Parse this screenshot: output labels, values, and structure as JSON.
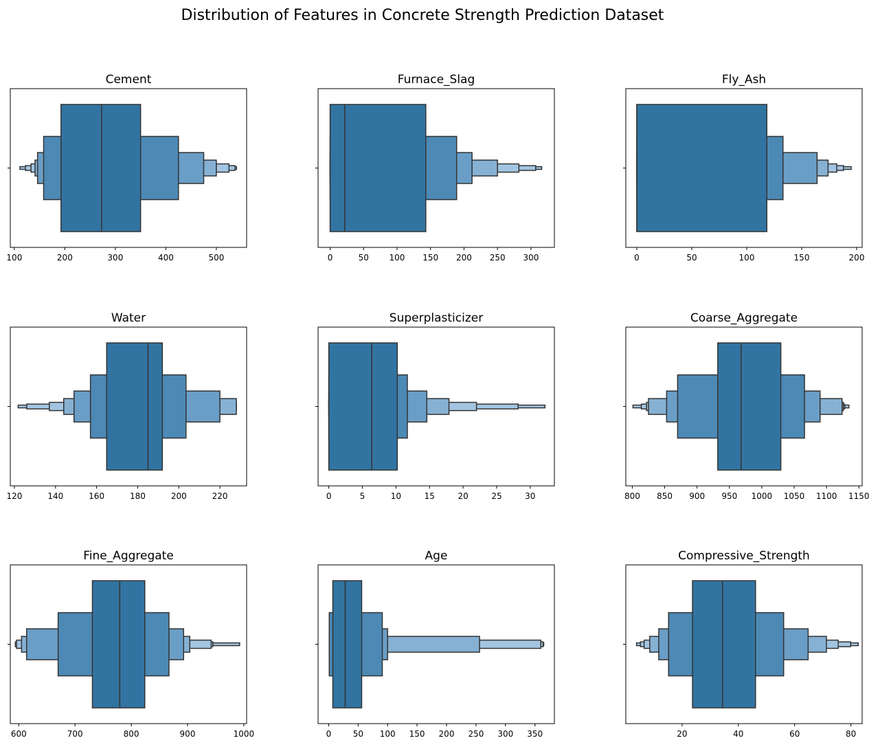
{
  "figure": {
    "title": "Distribution of Features in Concrete Strength Prediction Dataset"
  },
  "colors": {
    "box": [
      "#3274a1",
      "#4d89b5",
      "#6a9ec6",
      "#86b1d3",
      "#a3c5e1"
    ],
    "edge": "#333333"
  },
  "chart_data": [
    {
      "type": "boxen",
      "title": "Cement",
      "xlim": [
        92,
        560
      ],
      "xticks": [
        100,
        200,
        300,
        400,
        500
      ],
      "median": 272.9,
      "levels": [
        [
          192.4,
          350.0
        ],
        [
          158.0,
          425.0
        ],
        [
          146.0,
          475.0
        ],
        [
          141.0,
          500.0
        ],
        [
          133.0,
          525.0
        ],
        [
          122.0,
          537.0
        ],
        [
          111.0,
          540.0
        ]
      ]
    },
    {
      "type": "boxen",
      "title": "Furnace_Slag",
      "xlim": [
        -18,
        335
      ],
      "xticks": [
        0,
        50,
        100,
        150,
        200,
        250,
        300
      ],
      "median": 22.0,
      "levels": [
        [
          0.0,
          142.9
        ],
        [
          0.0,
          189.0
        ],
        [
          0.0,
          212.0
        ],
        [
          0.0,
          250.0
        ],
        [
          0.0,
          282.0
        ],
        [
          0.0,
          307.0
        ],
        [
          0.0,
          316.0
        ]
      ]
    },
    {
      "type": "boxen",
      "title": "Fly_Ash",
      "xlim": [
        -10,
        205
      ],
      "xticks": [
        0,
        50,
        100,
        150,
        200
      ],
      "median": 0,
      "levels": [
        [
          0.0,
          118.3
        ],
        [
          0.0,
          133.0
        ],
        [
          0.0,
          164.0
        ],
        [
          0.0,
          174.0
        ],
        [
          0.0,
          182.0
        ],
        [
          0.0,
          188.0
        ],
        [
          0.0,
          195.0
        ]
      ]
    },
    {
      "type": "boxen",
      "title": "Water",
      "xlim": [
        118,
        233
      ],
      "xticks": [
        120,
        140,
        160,
        180,
        200,
        220
      ],
      "median": 185.0,
      "levels": [
        [
          164.9,
          192.0
        ],
        [
          157.0,
          203.5
        ],
        [
          149.0,
          220.0
        ],
        [
          144.0,
          228.0
        ],
        [
          137.0,
          228.0
        ],
        [
          126.0,
          228.0
        ],
        [
          121.8,
          228.0
        ]
      ]
    },
    {
      "type": "boxen",
      "title": "Superplasticizer",
      "xlim": [
        -1.6,
        33.6
      ],
      "xticks": [
        0,
        5,
        10,
        15,
        20,
        25,
        30
      ],
      "median": 6.4,
      "levels": [
        [
          0.0,
          10.2
        ],
        [
          0.0,
          11.7
        ],
        [
          0.0,
          14.6
        ],
        [
          0.0,
          17.9
        ],
        [
          0.0,
          22.0
        ],
        [
          0.0,
          28.2
        ],
        [
          0.0,
          32.2
        ]
      ]
    },
    {
      "type": "boxen",
      "title": "Coarse_Aggregate",
      "xlim": [
        790,
        1155
      ],
      "xticks": [
        800,
        850,
        900,
        950,
        1000,
        1050,
        1100,
        1150
      ],
      "median": 968.0,
      "levels": [
        [
          932.0,
          1029.4
        ],
        [
          870.0,
          1066.0
        ],
        [
          853.0,
          1090.0
        ],
        [
          825.0,
          1124.0
        ],
        [
          822.0,
          1126.0
        ],
        [
          814.0,
          1128.0
        ],
        [
          801.0,
          1134.6
        ]
      ]
    },
    {
      "type": "boxen",
      "title": "Fine_Aggregate",
      "xlim": [
        585,
        1005
      ],
      "xticks": [
        600,
        700,
        800,
        900,
        1000
      ],
      "median": 779.5,
      "levels": [
        [
          730.9,
          824.0
        ],
        [
          670.0,
          867.0
        ],
        [
          614.0,
          893.0
        ],
        [
          605.0,
          904.0
        ],
        [
          596.0,
          942.0
        ],
        [
          594.0,
          945.0
        ],
        [
          594.0,
          992.6
        ]
      ]
    },
    {
      "type": "boxen",
      "title": "Age",
      "xlim": [
        -18,
        383
      ],
      "xticks": [
        0,
        50,
        100,
        150,
        200,
        250,
        300,
        350
      ],
      "median": 28,
      "levels": [
        [
          7.0,
          56.0
        ],
        [
          1.0,
          91.0
        ],
        [
          1.0,
          100.0
        ],
        [
          1.0,
          256.0
        ],
        [
          1.0,
          360.0
        ],
        [
          1.0,
          364.0
        ],
        [
          1.0,
          365.0
        ]
      ]
    },
    {
      "type": "boxen",
      "title": "Compressive_Strength",
      "xlim": [
        0,
        84
      ],
      "xticks": [
        20,
        40,
        60,
        80
      ],
      "median": 34.4,
      "levels": [
        [
          23.7,
          46.1
        ],
        [
          15.2,
          56.1
        ],
        [
          11.7,
          64.8
        ],
        [
          8.5,
          71.3
        ],
        [
          6.5,
          75.5
        ],
        [
          5.2,
          79.9
        ],
        [
          3.8,
          82.6
        ]
      ]
    }
  ]
}
